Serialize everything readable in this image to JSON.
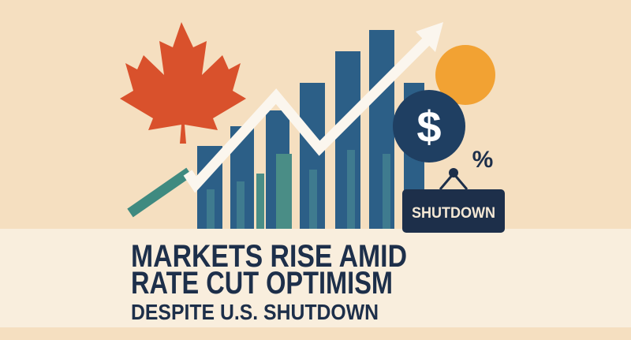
{
  "headline": {
    "line1": "MARKETS RISE AMID",
    "line2": "RATE CUT OPTIMISM",
    "line3": "DESPITE U.S. SHUTDOWN"
  },
  "icons": {
    "dollar": "$",
    "percent": "%"
  },
  "sign": {
    "label": "SHUTDOWN"
  }
}
